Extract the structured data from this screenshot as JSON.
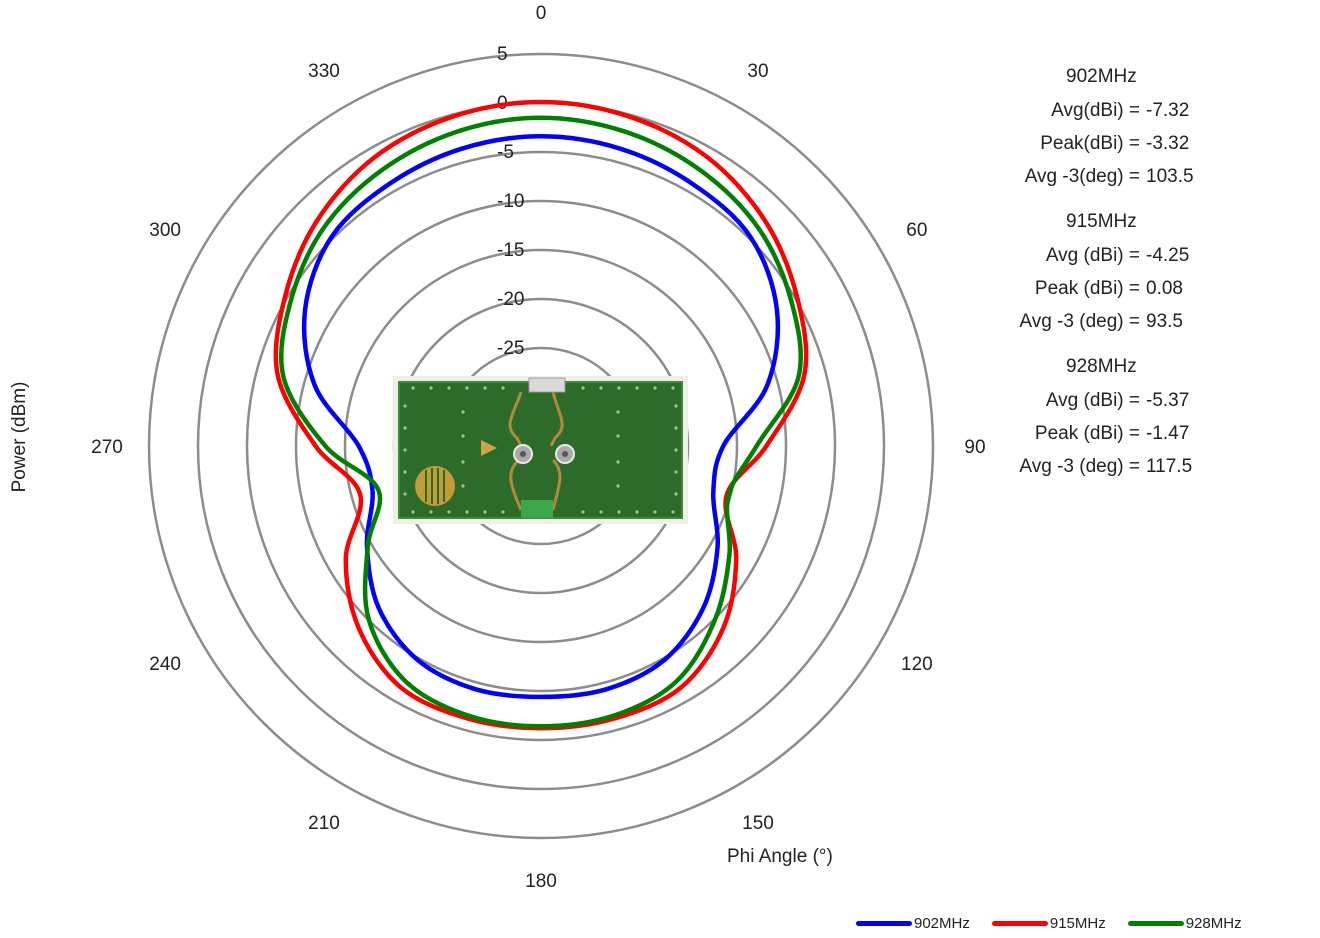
{
  "chart_data": {
    "type": "polar-line",
    "xlabel": "Phi Angle (°)",
    "ylabel": "Power (dBm)",
    "angle_ticks": [
      "0",
      "30",
      "60",
      "90",
      "120",
      "150",
      "180",
      "210",
      "240",
      "270",
      "300",
      "330"
    ],
    "radial_ticks": [
      "5",
      "0",
      "-5",
      "-10",
      "-15",
      "-20",
      "-25"
    ],
    "radial_range": [
      -35,
      5
    ],
    "grid": true,
    "legend_position": "bottom-right",
    "angles_deg": [
      0,
      15,
      30,
      45,
      60,
      75,
      90,
      105,
      120,
      135,
      150,
      165,
      180,
      195,
      210,
      225,
      240,
      255,
      270,
      285,
      300,
      315,
      330,
      345
    ],
    "series": [
      {
        "name": "902MHz",
        "color": "#0000ff",
        "values": [
          -3.4,
          -3.6,
          -4.1,
          -4.8,
          -7.2,
          -11.1,
          -16.4,
          -16.8,
          -14.2,
          -11.6,
          -9.8,
          -9.3,
          -9.4,
          -9.3,
          -9.8,
          -11.6,
          -14.5,
          -17.2,
          -16.4,
          -11.1,
          -7.2,
          -4.8,
          -4.1,
          -3.6
        ]
      },
      {
        "name": "915MHz",
        "color": "#ff0000",
        "values": [
          0.1,
          -0.2,
          -1.0,
          -2.6,
          -4.8,
          -7.2,
          -12.0,
          -15.4,
          -12.0,
          -8.7,
          -6.5,
          -6.2,
          -6.2,
          -6.2,
          -6.5,
          -8.7,
          -12.0,
          -15.9,
          -12.0,
          -7.2,
          -4.8,
          -2.6,
          -1.0,
          -0.2
        ]
      },
      {
        "name": "928MHz",
        "color": "#008000",
        "values": [
          -1.5,
          -1.8,
          -2.5,
          -3.6,
          -5.5,
          -7.8,
          -13.0,
          -15.2,
          -12.8,
          -9.9,
          -7.3,
          -6.5,
          -6.4,
          -6.5,
          -7.3,
          -10.1,
          -14.6,
          -17.8,
          -13.0,
          -7.8,
          -5.5,
          -3.6,
          -2.5,
          -1.8
        ]
      }
    ]
  },
  "stats": [
    {
      "title": "902MHz",
      "rows": [
        {
          "label": "Avg(dBi) =",
          "value": "-7.32"
        },
        {
          "label": "Peak(dBi) =",
          "value": "-3.32"
        },
        {
          "label": "Avg -3(deg) =",
          "value": "103.5"
        }
      ]
    },
    {
      "title": "915MHz",
      "rows": [
        {
          "label": "Avg (dBi) =",
          "value": "-4.25"
        },
        {
          "label": "Peak (dBi) =",
          "value": "0.08"
        },
        {
          "label": "Avg -3 (deg) =",
          "value": "93.5"
        }
      ]
    },
    {
      "title": "928MHz",
      "rows": [
        {
          "label": "Avg (dBi) =",
          "value": "-5.37"
        },
        {
          "label": "Peak (dBi) =",
          "value": "-1.47"
        },
        {
          "label": "Avg -3 (deg) =",
          "value": "117.5"
        }
      ]
    }
  ],
  "colors": {
    "grid": "#8c8c8c",
    "pcb_board": "#2e6f2a",
    "pcb_frame": "#f3f1ea"
  }
}
